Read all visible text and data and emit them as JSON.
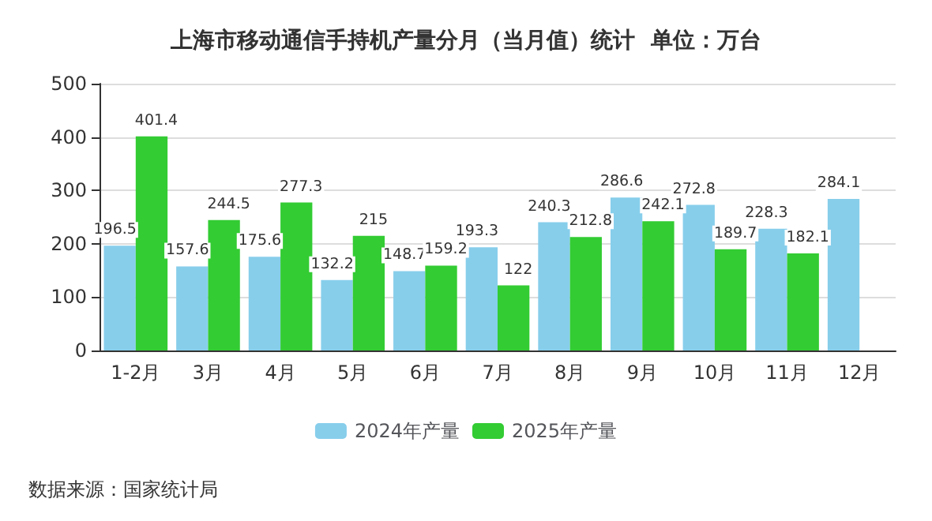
{
  "chart_data": {
    "type": "bar",
    "title": "上海市移动通信手持机产量分月（当月值）统计  单位：万台",
    "categories": [
      "1-2月",
      "3月",
      "4月",
      "5月",
      "6月",
      "7月",
      "8月",
      "9月",
      "10月",
      "11月",
      "12月"
    ],
    "series": [
      {
        "name": "2024年产量",
        "color": "#87ceeb",
        "values": [
          196.5,
          157.6,
          175.6,
          132.2,
          148.7,
          193.3,
          240.3,
          286.6,
          272.8,
          228.3,
          284.1
        ]
      },
      {
        "name": "2025年产量",
        "color": "#33cc33",
        "values": [
          401.4,
          244.5,
          277.3,
          215,
          159.2,
          122,
          212.8,
          242.1,
          189.7,
          182.1,
          null
        ]
      }
    ],
    "ylim": [
      0,
      500
    ],
    "yticks": [
      0,
      100,
      200,
      300,
      400,
      500
    ],
    "grid": "y",
    "legend": "bottom",
    "data_labels": true,
    "annotations": [
      "数据来源：国家统计局"
    ]
  }
}
